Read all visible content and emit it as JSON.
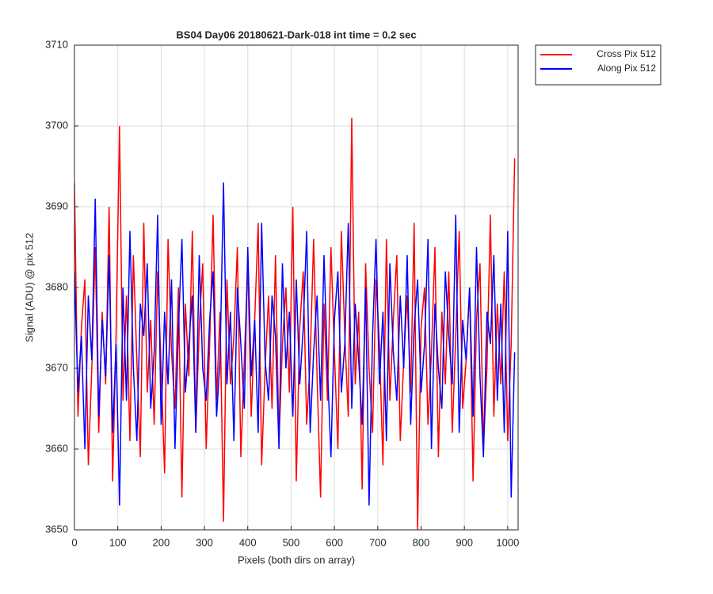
{
  "chart_data": {
    "type": "line",
    "title": "BS04 Day06 20180621-Dark-018 int time = 0.2 sec",
    "xlabel": "Pixels (both dirs on array)",
    "ylabel": "Signal (ADU) @ pix 512",
    "x": [
      0,
      8,
      16,
      24,
      32,
      40,
      48,
      56,
      64,
      72,
      80,
      88,
      96,
      104,
      112,
      120,
      128,
      136,
      144,
      152,
      160,
      168,
      176,
      184,
      192,
      200,
      208,
      216,
      224,
      232,
      240,
      248,
      256,
      264,
      272,
      280,
      288,
      296,
      304,
      312,
      320,
      328,
      336,
      344,
      352,
      360,
      368,
      376,
      384,
      392,
      400,
      408,
      416,
      424,
      432,
      440,
      448,
      456,
      464,
      472,
      480,
      488,
      496,
      504,
      512,
      520,
      528,
      536,
      544,
      552,
      560,
      568,
      576,
      584,
      592,
      600,
      608,
      616,
      624,
      632,
      640,
      648,
      656,
      664,
      672,
      680,
      688,
      696,
      704,
      712,
      720,
      728,
      736,
      744,
      752,
      760,
      768,
      776,
      784,
      792,
      800,
      808,
      816,
      824,
      832,
      840,
      848,
      856,
      864,
      872,
      880,
      888,
      896,
      904,
      912,
      920,
      928,
      936,
      944,
      952,
      960,
      968,
      976,
      984,
      992,
      1000,
      1008,
      1016
    ],
    "series": [
      {
        "name": "Cross Pix 512",
        "color": "#ff0000",
        "values": [
          3693,
          3664,
          3675,
          3681,
          3658,
          3670,
          3685,
          3662,
          3677,
          3668,
          3690,
          3656,
          3674,
          3700,
          3666,
          3679,
          3661,
          3684,
          3671,
          3659,
          3688,
          3667,
          3676,
          3663,
          3682,
          3670,
          3657,
          3686,
          3672,
          3665,
          3680,
          3654,
          3678,
          3669,
          3687,
          3662,
          3675,
          3683,
          3660,
          3673,
          3689,
          3666,
          3677,
          3651,
          3681,
          3668,
          3674,
          3685,
          3659,
          3671,
          3683,
          3664,
          3676,
          3688,
          3658,
          3670,
          3679,
          3665,
          3684,
          3661,
          3673,
          3680,
          3667,
          3690,
          3656,
          3675,
          3682,
          3663,
          3671,
          3686,
          3669,
          3654,
          3678,
          3666,
          3685,
          3672,
          3660,
          3687,
          3674,
          3664,
          3701,
          3668,
          3677,
          3655,
          3683,
          3670,
          3662,
          3681,
          3673,
          3658,
          3686,
          3666,
          3676,
          3684,
          3661,
          3671,
          3679,
          3667,
          3688,
          3650,
          3675,
          3680,
          3663,
          3672,
          3685,
          3659,
          3677,
          3668,
          3682,
          3662,
          3674,
          3687,
          3665,
          3671,
          3680,
          3656,
          3676,
          3683,
          3660,
          3670,
          3689,
          3664,
          3678,
          3668,
          3682,
          3661,
          3673,
          3696
        ]
      },
      {
        "name": "Along Pix 512",
        "color": "#0000ff",
        "values": [
          3682,
          3667,
          3674,
          3660,
          3679,
          3671,
          3691,
          3664,
          3676,
          3669,
          3684,
          3662,
          3673,
          3653,
          3680,
          3666,
          3687,
          3670,
          3661,
          3678,
          3674,
          3683,
          3665,
          3672,
          3689,
          3663,
          3677,
          3668,
          3681,
          3660,
          3675,
          3686,
          3667,
          3673,
          3679,
          3662,
          3684,
          3670,
          3666,
          3676,
          3682,
          3664,
          3671,
          3693,
          3668,
          3677,
          3661,
          3680,
          3673,
          3665,
          3685,
          3669,
          3676,
          3662,
          3688,
          3671,
          3666,
          3679,
          3674,
          3660,
          3683,
          3670,
          3677,
          3664,
          3681,
          3668,
          3675,
          3687,
          3662,
          3672,
          3679,
          3666,
          3684,
          3670,
          3659,
          3676,
          3682,
          3667,
          3673,
          3688,
          3665,
          3678,
          3671,
          3663,
          3680,
          3653,
          3674,
          3686,
          3668,
          3677,
          3661,
          3683,
          3672,
          3666,
          3679,
          3670,
          3684,
          3663,
          3675,
          3681,
          3667,
          3673,
          3686,
          3660,
          3678,
          3670,
          3665,
          3682,
          3674,
          3668,
          3689,
          3662,
          3676,
          3671,
          3680,
          3664,
          3685,
          3669,
          3659,
          3677,
          3673,
          3684,
          3666,
          3678,
          3662,
          3687,
          3654,
          3672
        ]
      }
    ],
    "xlim": [
      0,
      1024
    ],
    "xticks": [
      0,
      100,
      200,
      300,
      400,
      500,
      600,
      700,
      800,
      900,
      1000
    ],
    "ylim": [
      3650,
      3710
    ],
    "yticks": [
      3650,
      3660,
      3670,
      3680,
      3690,
      3700,
      3710
    ],
    "grid": true,
    "legend": "outside-top-right"
  }
}
